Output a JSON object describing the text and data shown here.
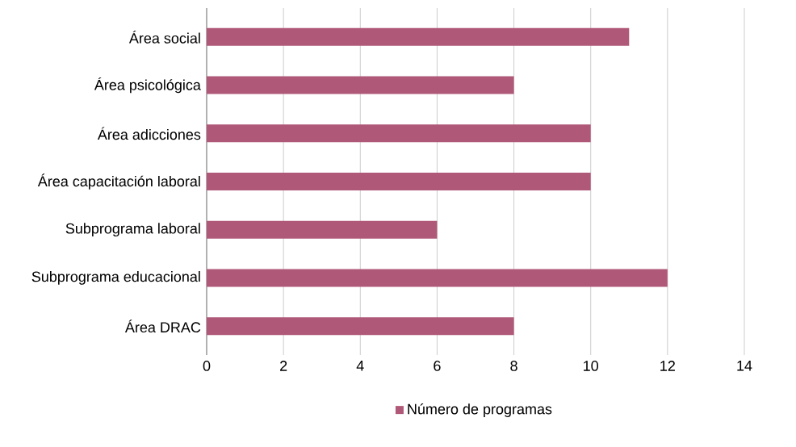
{
  "chart_data": {
    "type": "bar",
    "orientation": "horizontal",
    "categories": [
      "Área social",
      "Área psicológica",
      "Área adicciones",
      "Área capacitación laboral",
      "Subprograma laboral",
      "Subprograma educacional",
      "Área DRAC"
    ],
    "series": [
      {
        "name": "Número de programas",
        "color": "#b05878",
        "values": [
          11,
          8,
          10,
          10,
          6,
          12,
          8
        ]
      }
    ],
    "xlim": [
      0,
      14
    ],
    "xticks": [
      0,
      2,
      4,
      6,
      8,
      10,
      12,
      14
    ],
    "grid": "x",
    "legend": "bottom"
  }
}
